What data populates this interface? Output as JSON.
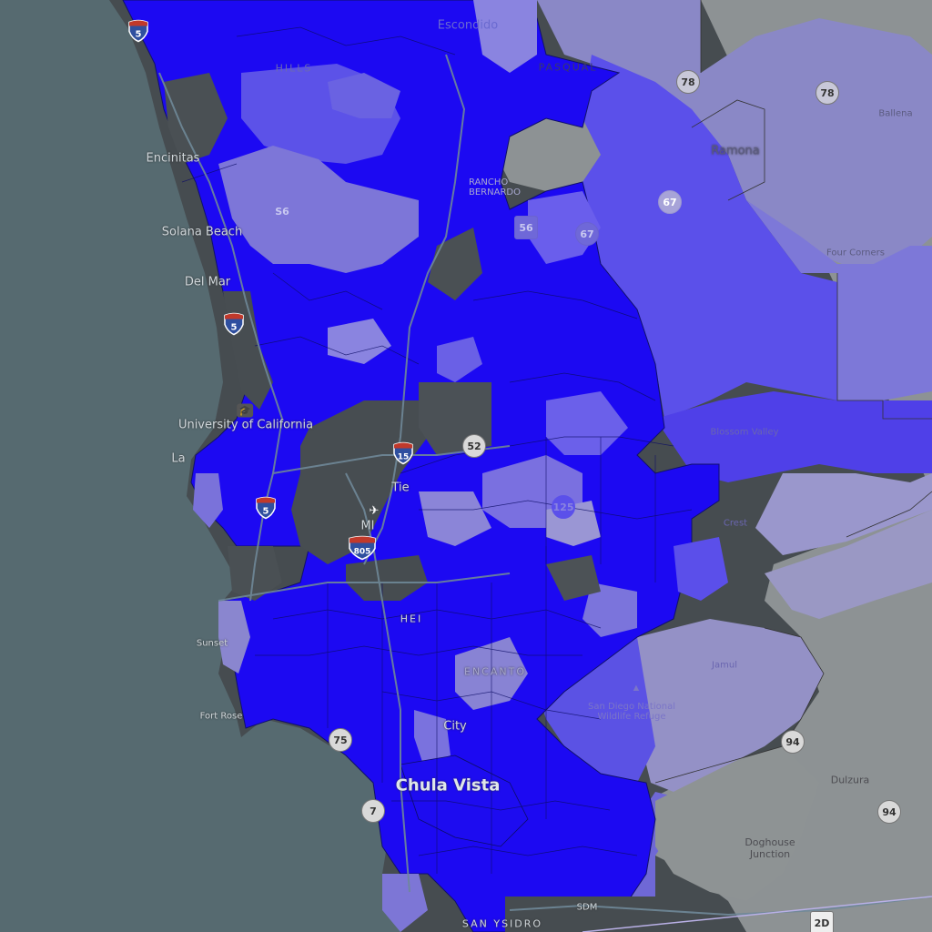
{
  "map": {
    "place_labels": {
      "encinitas": "Encinitas",
      "solana_beach": "Solana Beach",
      "del_mar": "Del Mar",
      "university": "University of California",
      "la_jolla": "La",
      "sunset_cliffs": "Sunset",
      "fort_rosecrans": "Fort Rose",
      "chula_vista": "Chula Vista",
      "national_city": "City",
      "ramona": "Ramona",
      "ballena": "Ballena",
      "four_corners": "Four Corners",
      "blossom_valley": "Blossom Valley",
      "crest": "Crest",
      "jamul": "Jamul",
      "sdnwr": "San Diego National Wildlife Refuge",
      "dulzura": "Dulzura",
      "doghouse_junction": "Doghouse Junction",
      "pasqual": "PASQUAL",
      "hills": "HILLS",
      "escondido": "Escondido",
      "rancho_bernardo": "RANCHO BERNARDO",
      "miramar": "MI",
      "heights": "HEI",
      "encanto": "ENCANTO",
      "san_ysidro": "SAN YSIDRO",
      "sdm": "SDM",
      "tierrasanta": "Tie"
    },
    "route_shields": {
      "i5_north": "5",
      "i5_mid": "5",
      "i5_south": "5",
      "i15": "15",
      "i805": "805",
      "sr56": "56",
      "s6": "S6",
      "sr67": "67",
      "sr67b": "67",
      "sr78": "78",
      "sr78b": "78",
      "sr52": "52",
      "sr94": "94",
      "sr94b": "94",
      "sr75": "75",
      "sr7": "7",
      "sr125": "125",
      "us2d": "2D"
    },
    "colors": {
      "ocean": "#566a70",
      "land": "#464c50",
      "land_east": "#8c9294",
      "choropleth_high": "#1c09f2",
      "choropleth_mid": "#5a4ef0",
      "choropleth_low": "#7c76d8",
      "choropleth_lowest": "#9e9cc8",
      "road": "#6f8898"
    }
  }
}
